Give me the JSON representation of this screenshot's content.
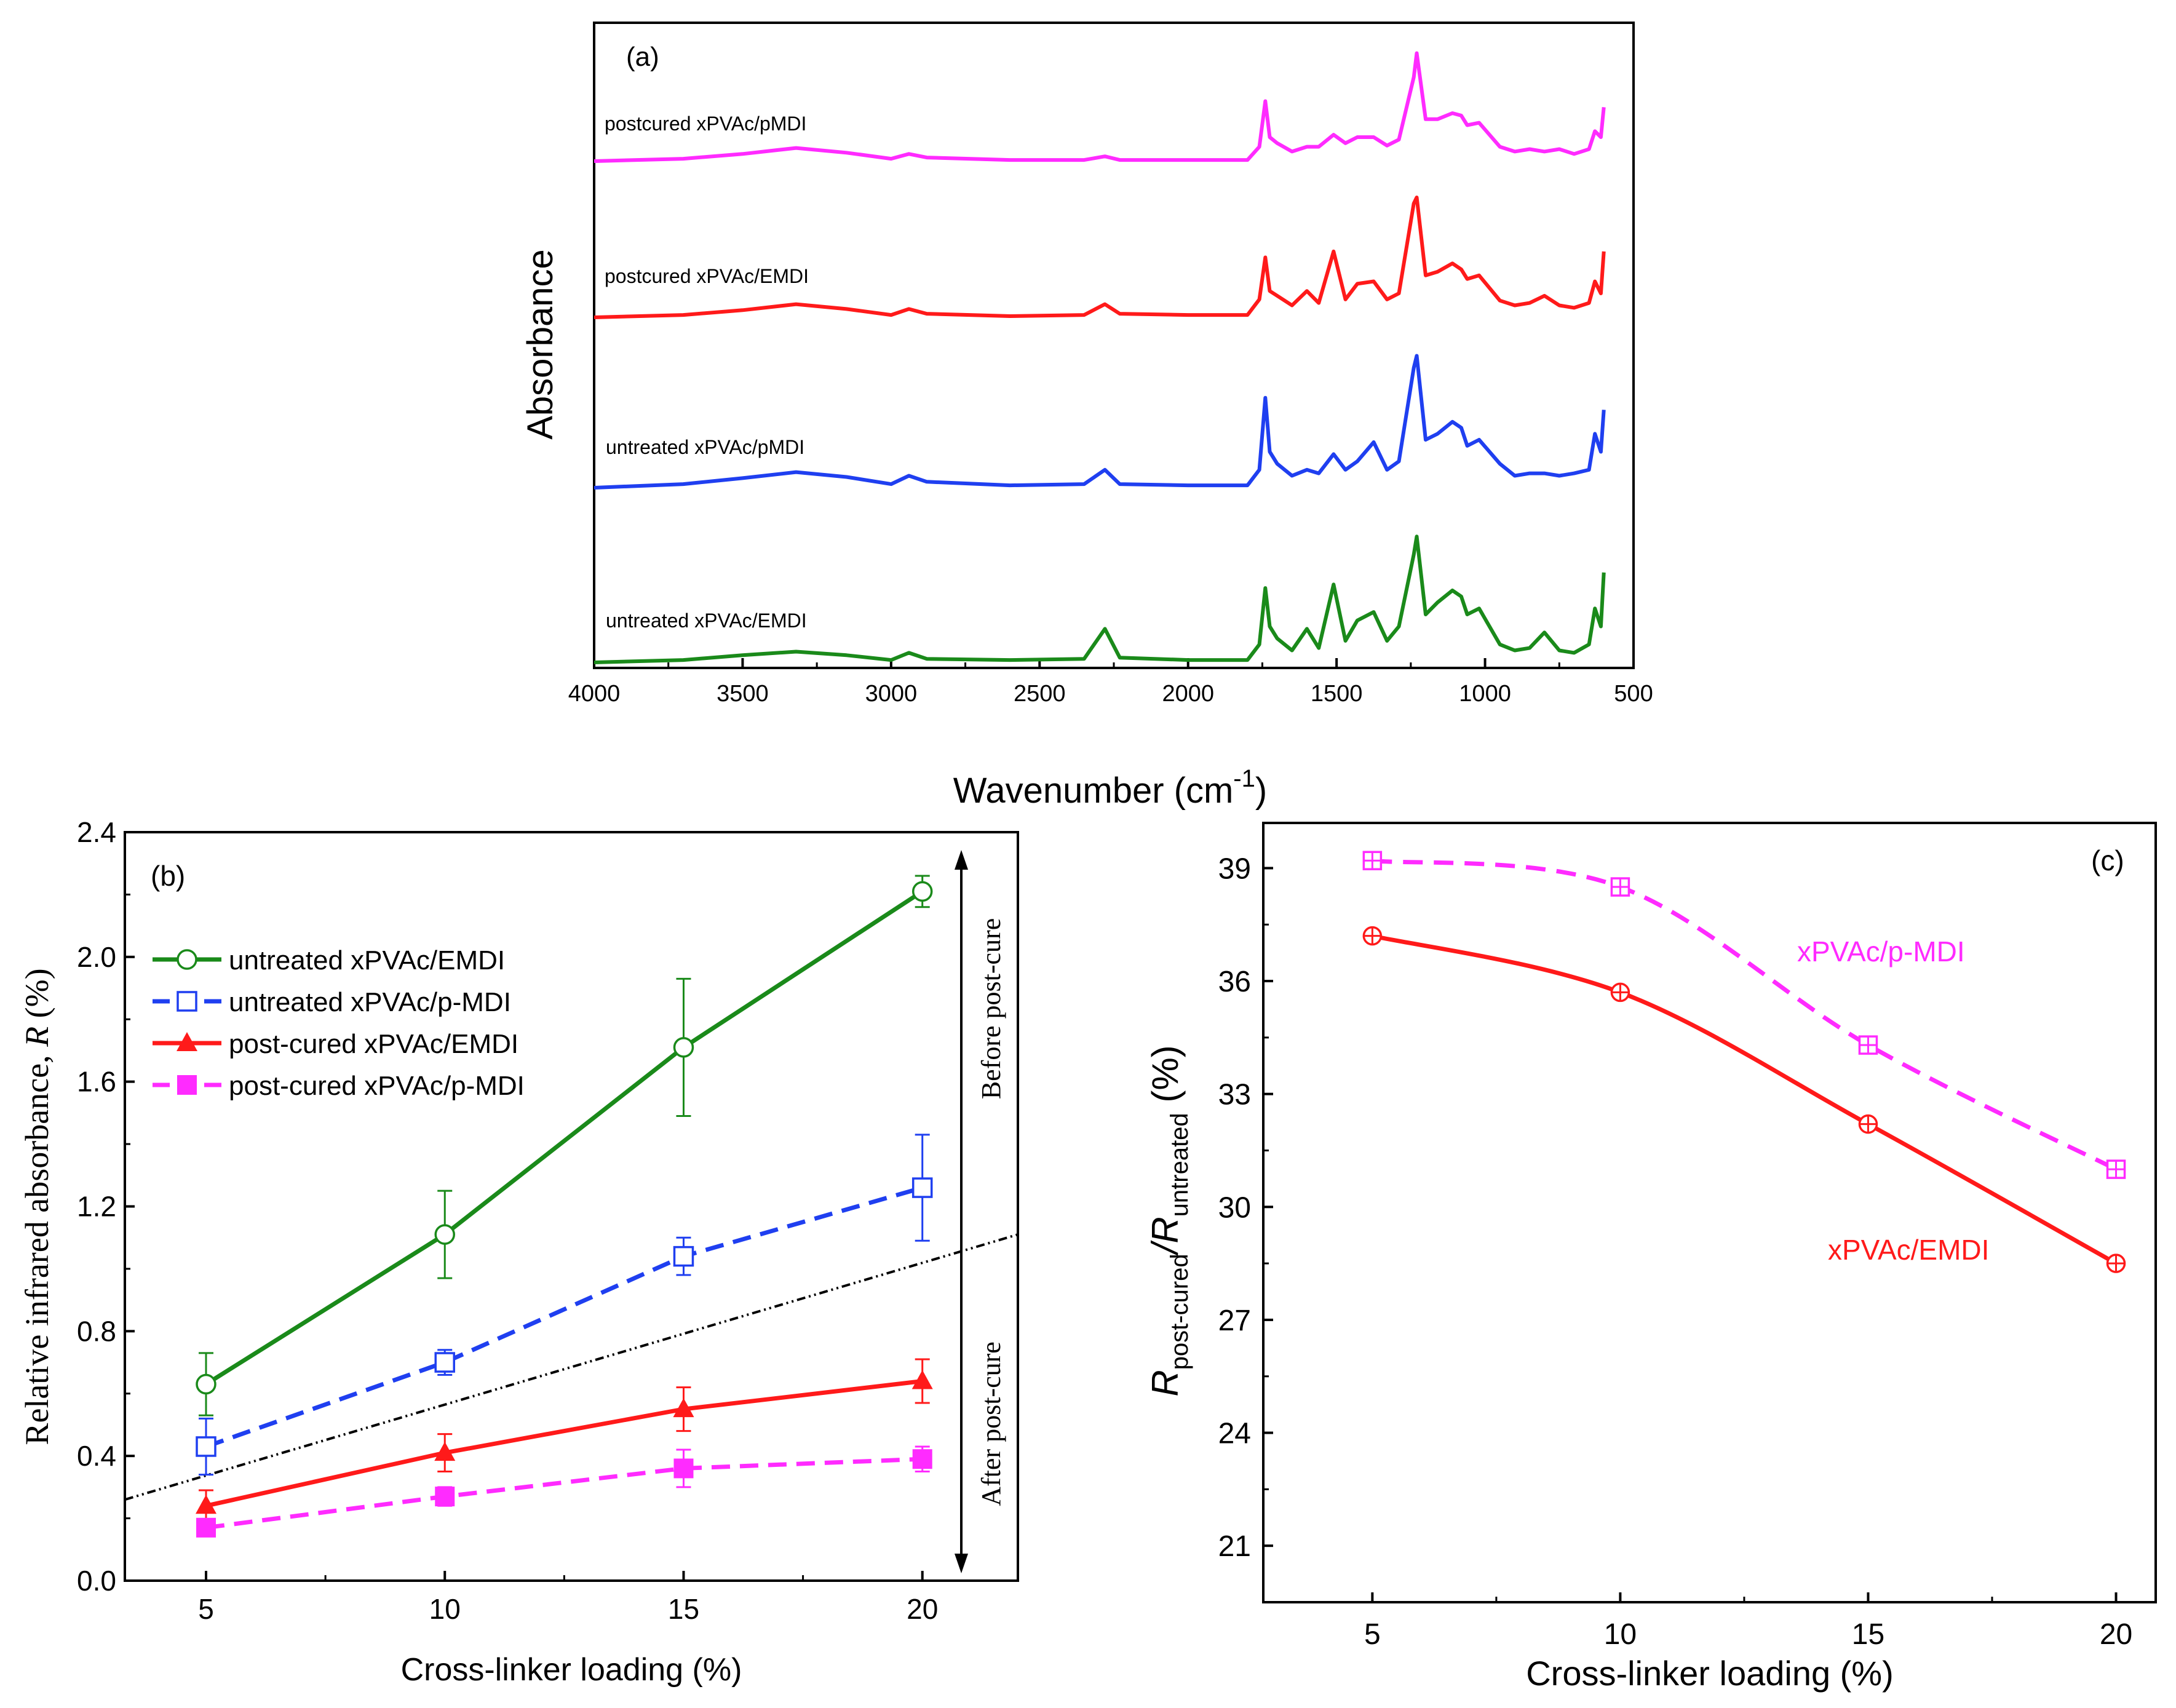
{
  "colors": {
    "green": "#1a8a1a",
    "blue": "#1f3ff0",
    "red": "#ff1a1a",
    "magenta": "#ff2bff",
    "black": "#000000"
  },
  "chart_data": [
    {
      "type": "line",
      "panel_label": "(a)",
      "title": "",
      "xlabel": "Wavenumber (cm",
      "xlabel_sup": "-1",
      "xlabel_tail": ")",
      "ylabel": "Absorbance",
      "xlim": [
        4000,
        500
      ],
      "x_ticks": [
        "4000",
        "3500",
        "3000",
        "2500",
        "2000",
        "1500",
        "1000",
        "500"
      ],
      "y_ticks": [],
      "series": [
        {
          "name": "postcured xPVAc/pMDI",
          "color": "#ff2bff",
          "offset": 3,
          "x": [
            4000,
            3700,
            3500,
            3320,
            3150,
            3000,
            2940,
            2880,
            2600,
            2350,
            2280,
            2230,
            2000,
            1800,
            1760,
            1740,
            1725,
            1700,
            1650,
            1600,
            1560,
            1510,
            1470,
            1430,
            1375,
            1330,
            1290,
            1240,
            1230,
            1200,
            1160,
            1110,
            1080,
            1060,
            1020,
            950,
            900,
            850,
            800,
            750,
            700,
            650,
            630,
            610,
            600
          ],
          "y": [
            0.0,
            0.02,
            0.06,
            0.11,
            0.07,
            0.02,
            0.06,
            0.03,
            0.01,
            0.01,
            0.04,
            0.01,
            0.01,
            0.01,
            0.12,
            0.5,
            0.2,
            0.15,
            0.08,
            0.12,
            0.12,
            0.22,
            0.15,
            0.2,
            0.2,
            0.13,
            0.18,
            0.7,
            0.9,
            0.35,
            0.35,
            0.4,
            0.38,
            0.3,
            0.32,
            0.12,
            0.08,
            0.1,
            0.08,
            0.1,
            0.06,
            0.1,
            0.25,
            0.2,
            0.45
          ]
        },
        {
          "name": "postcured xPVAc/EMDI",
          "color": "#ff1a1a",
          "offset": 2,
          "x": [
            4000,
            3700,
            3500,
            3320,
            3150,
            3000,
            2940,
            2880,
            2600,
            2350,
            2280,
            2230,
            2000,
            1800,
            1760,
            1740,
            1725,
            1700,
            1650,
            1600,
            1560,
            1510,
            1470,
            1430,
            1375,
            1330,
            1290,
            1240,
            1230,
            1200,
            1160,
            1110,
            1080,
            1060,
            1020,
            950,
            900,
            850,
            800,
            750,
            700,
            650,
            630,
            610,
            600
          ],
          "y": [
            0.0,
            0.02,
            0.06,
            0.11,
            0.07,
            0.02,
            0.07,
            0.03,
            0.01,
            0.02,
            0.11,
            0.03,
            0.02,
            0.02,
            0.15,
            0.5,
            0.22,
            0.18,
            0.1,
            0.22,
            0.12,
            0.55,
            0.15,
            0.28,
            0.3,
            0.15,
            0.2,
            0.95,
            1.0,
            0.35,
            0.38,
            0.45,
            0.4,
            0.32,
            0.35,
            0.14,
            0.1,
            0.12,
            0.18,
            0.1,
            0.08,
            0.12,
            0.3,
            0.2,
            0.55
          ]
        },
        {
          "name": "untreated xPVAc/pMDI",
          "color": "#1f3ff0",
          "offset": 1,
          "x": [
            4000,
            3700,
            3500,
            3320,
            3150,
            3000,
            2940,
            2880,
            2600,
            2350,
            2280,
            2230,
            2000,
            1800,
            1760,
            1740,
            1725,
            1700,
            1650,
            1600,
            1560,
            1510,
            1470,
            1430,
            1375,
            1330,
            1290,
            1240,
            1230,
            1200,
            1160,
            1110,
            1080,
            1060,
            1020,
            950,
            900,
            850,
            800,
            750,
            700,
            650,
            630,
            610,
            600
          ],
          "y": [
            0.0,
            0.03,
            0.08,
            0.13,
            0.09,
            0.03,
            0.1,
            0.05,
            0.02,
            0.03,
            0.15,
            0.03,
            0.02,
            0.02,
            0.15,
            0.75,
            0.3,
            0.2,
            0.1,
            0.15,
            0.12,
            0.28,
            0.15,
            0.22,
            0.38,
            0.15,
            0.22,
            1.0,
            1.1,
            0.4,
            0.45,
            0.55,
            0.5,
            0.35,
            0.4,
            0.2,
            0.1,
            0.12,
            0.12,
            0.1,
            0.12,
            0.15,
            0.45,
            0.3,
            0.65
          ]
        },
        {
          "name": "untreated xPVAc/EMDI",
          "color": "#1a8a1a",
          "offset": 0,
          "x": [
            4000,
            3700,
            3500,
            3320,
            3150,
            3000,
            2940,
            2880,
            2600,
            2350,
            2280,
            2230,
            2000,
            1800,
            1760,
            1740,
            1725,
            1700,
            1650,
            1600,
            1560,
            1510,
            1470,
            1430,
            1375,
            1330,
            1290,
            1240,
            1230,
            1200,
            1160,
            1110,
            1080,
            1060,
            1020,
            950,
            900,
            850,
            800,
            750,
            700,
            650,
            630,
            610,
            600
          ],
          "y": [
            0.0,
            0.02,
            0.06,
            0.09,
            0.06,
            0.02,
            0.08,
            0.03,
            0.02,
            0.03,
            0.28,
            0.04,
            0.02,
            0.02,
            0.15,
            0.62,
            0.3,
            0.2,
            0.1,
            0.28,
            0.12,
            0.65,
            0.18,
            0.35,
            0.42,
            0.18,
            0.3,
            0.9,
            1.05,
            0.4,
            0.5,
            0.6,
            0.55,
            0.4,
            0.45,
            0.15,
            0.1,
            0.12,
            0.25,
            0.1,
            0.08,
            0.15,
            0.45,
            0.3,
            0.75
          ]
        }
      ]
    },
    {
      "type": "line",
      "panel_label": "(b)",
      "title": "",
      "xlabel": "Cross-linker loading (%)",
      "ylabel": "Relative infrared absorbance, ",
      "ylabel_italic": "R",
      "ylabel_tail": " (%)",
      "xlim": [
        3.3,
        22
      ],
      "ylim": [
        0,
        2.4
      ],
      "x_ticks": [
        5,
        10,
        15,
        20
      ],
      "y_ticks": [
        0.0,
        0.4,
        0.8,
        1.2,
        1.6,
        2.0,
        2.4
      ],
      "y_tick_labels": [
        "0.0",
        "0.4",
        "0.8",
        "1.2",
        "1.6",
        "2.0",
        "2.4"
      ],
      "legend_position": "top-left",
      "categories": [
        5,
        10,
        15,
        20
      ],
      "series": [
        {
          "name": "untreated xPVAc/EMDI",
          "color": "#1a8a1a",
          "dashed": false,
          "marker": "circle-open",
          "values": [
            0.63,
            1.11,
            1.71,
            2.21
          ],
          "errors": [
            0.1,
            0.14,
            0.22,
            0.05
          ]
        },
        {
          "name": "untreated xPVAc/p-MDI",
          "color": "#1f3ff0",
          "dashed": true,
          "marker": "square-open",
          "values": [
            0.43,
            0.7,
            1.04,
            1.26
          ],
          "errors": [
            0.09,
            0.04,
            0.06,
            0.17
          ]
        },
        {
          "name": "post-cured xPVAc/EMDI",
          "color": "#ff1a1a",
          "dashed": false,
          "marker": "triangle-filled",
          "values": [
            0.24,
            0.41,
            0.55,
            0.64
          ],
          "errors": [
            0.05,
            0.06,
            0.07,
            0.07
          ]
        },
        {
          "name": "post-cured xPVAc/p-MDI",
          "color": "#ff2bff",
          "dashed": true,
          "marker": "square-filled",
          "values": [
            0.17,
            0.27,
            0.36,
            0.39
          ],
          "errors": [
            0.02,
            0.03,
            0.06,
            0.04
          ]
        }
      ],
      "divider_line": {
        "x": [
          3.3,
          22
        ],
        "y": [
          0.26,
          1.11
        ]
      },
      "annotations": [
        "Before post-cure",
        "After post-cure"
      ]
    },
    {
      "type": "line",
      "panel_label": "(c)",
      "title": "",
      "xlabel": "Cross-linker loading (%)",
      "ylabel_parts": [
        "R",
        "post-cured",
        "/R",
        "untreated",
        " (%)"
      ],
      "xlim": [
        2.8,
        20.8
      ],
      "ylim": [
        19.5,
        40.2
      ],
      "x_ticks": [
        5,
        10,
        15,
        20
      ],
      "y_ticks": [
        21,
        24,
        27,
        30,
        33,
        36,
        39
      ],
      "categories": [
        5,
        10,
        15,
        20
      ],
      "series": [
        {
          "name": "xPVAc/p-MDI",
          "color": "#ff2bff",
          "dashed": true,
          "marker": "square-plus",
          "values": [
            39.2,
            38.5,
            34.3,
            31.0
          ]
        },
        {
          "name": "xPVAc/EMDI",
          "color": "#ff1a1a",
          "dashed": false,
          "marker": "circle-plus",
          "values": [
            37.2,
            35.7,
            32.2,
            28.5
          ]
        }
      ]
    }
  ]
}
